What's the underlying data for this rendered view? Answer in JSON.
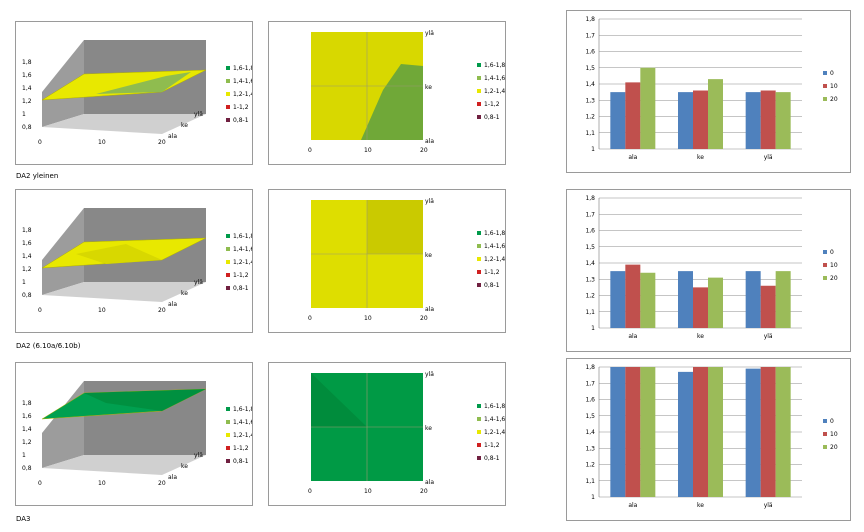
{
  "legend_surface": [
    {
      "label": "1,6-1,8",
      "color": "#009a4a"
    },
    {
      "label": "1,4-1,6",
      "color": "#8fbc4f"
    },
    {
      "label": "1,2-1,4",
      "color": "#e8e800"
    },
    {
      "label": "1-1,2",
      "color": "#d02020"
    },
    {
      "label": "0,8-1",
      "color": "#702040"
    }
  ],
  "rows": [
    {
      "label": "DA2 yleinen",
      "surface3d": {
        "yticks": [
          "0,8",
          "1",
          "1,2",
          "1,4",
          "1,6",
          "1,8"
        ],
        "xticks": [
          "0",
          "10",
          "20"
        ],
        "depth": [
          "ala",
          "ke",
          "ylä"
        ],
        "fill_main": "#e8e800",
        "fill_second": "#8fbc4f"
      },
      "contour": {
        "xticks": [
          "0",
          "10",
          "20"
        ],
        "right": [
          "ylä",
          "ke",
          "ala"
        ],
        "base": "#d8d800",
        "patch": "#70a838"
      },
      "chart_data": {
        "type": "bar",
        "categories": [
          "ala",
          "ke",
          "ylä"
        ],
        "series": [
          {
            "name": "0",
            "values": [
              1.35,
              1.35,
              1.35
            ]
          },
          {
            "name": "10",
            "values": [
              1.41,
              1.36,
              1.36
            ]
          },
          {
            "name": "20",
            "values": [
              1.5,
              1.43,
              1.35
            ]
          }
        ],
        "ylim": [
          1,
          1.8
        ],
        "yticks": [
          "1",
          "1,1",
          "1,2",
          "1,3",
          "1,4",
          "1,5",
          "1,6",
          "1,7",
          "1,8"
        ],
        "colors": [
          "#4f81bd",
          "#c0504d",
          "#9bbb59"
        ]
      }
    },
    {
      "label": "DA2 (6.10a/6.10b)",
      "surface3d": {
        "yticks": [
          "0,8",
          "1",
          "1,2",
          "1,4",
          "1,6",
          "1,8"
        ],
        "xticks": [
          "0",
          "10",
          "20"
        ],
        "depth": [
          "ala",
          "ke",
          "ylä"
        ],
        "fill_main": "#e8e800",
        "fill_second": "#d8d800"
      },
      "contour": {
        "xticks": [
          "0",
          "10",
          "20"
        ],
        "right": [
          "ylä",
          "ke",
          "ala"
        ],
        "base": "#dede00",
        "patch": "#caca00"
      },
      "chart_data": {
        "type": "bar",
        "categories": [
          "ala",
          "ke",
          "ylä"
        ],
        "series": [
          {
            "name": "0",
            "values": [
              1.35,
              1.35,
              1.35
            ]
          },
          {
            "name": "10",
            "values": [
              1.39,
              1.25,
              1.26
            ]
          },
          {
            "name": "20",
            "values": [
              1.34,
              1.31,
              1.35
            ]
          }
        ],
        "ylim": [
          1,
          1.8
        ],
        "yticks": [
          "1",
          "1,1",
          "1,2",
          "1,3",
          "1,4",
          "1,5",
          "1,6",
          "1,7",
          "1,8"
        ],
        "colors": [
          "#4f81bd",
          "#c0504d",
          "#9bbb59"
        ]
      }
    },
    {
      "label": "DA3",
      "surface3d": {
        "yticks": [
          "0,8",
          "1",
          "1,2",
          "1,4",
          "1,6",
          "1,8"
        ],
        "xticks": [
          "0",
          "10",
          "20"
        ],
        "depth": [
          "ala",
          "ke",
          "ylä"
        ],
        "fill_main": "#00a050",
        "fill_second": "#009040"
      },
      "contour": {
        "xticks": [
          "0",
          "10",
          "20"
        ],
        "right": [
          "ylä",
          "ke",
          "ala"
        ],
        "base": "#009a45",
        "patch": "#008c3c"
      },
      "chart_data": {
        "type": "bar",
        "categories": [
          "ala",
          "ke",
          "ylä"
        ],
        "series": [
          {
            "name": "0",
            "values": [
              1.8,
              1.77,
              1.79
            ]
          },
          {
            "name": "10",
            "values": [
              1.8,
              1.8,
              1.8
            ]
          },
          {
            "name": "20",
            "values": [
              1.8,
              1.8,
              1.8
            ]
          }
        ],
        "ylim": [
          1,
          1.8
        ],
        "yticks": [
          "1",
          "1,1",
          "1,2",
          "1,3",
          "1,4",
          "1,5",
          "1,6",
          "1,7",
          "1,8"
        ],
        "colors": [
          "#4f81bd",
          "#c0504d",
          "#9bbb59"
        ]
      }
    }
  ]
}
